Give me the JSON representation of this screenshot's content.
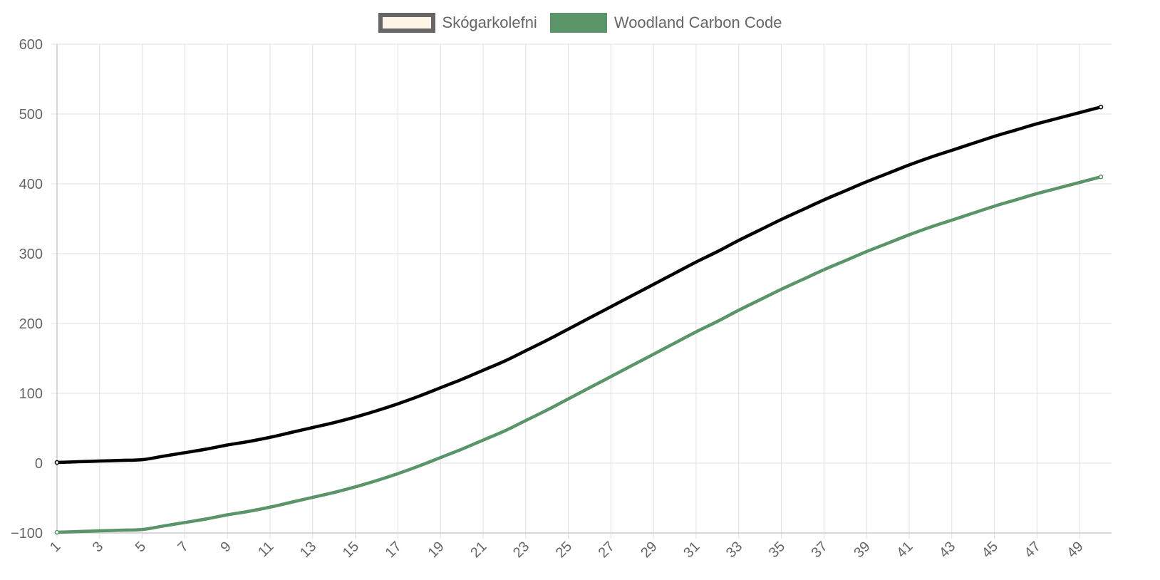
{
  "chart_data": {
    "type": "line",
    "x": [
      1,
      2,
      3,
      4,
      5,
      6,
      7,
      8,
      9,
      10,
      11,
      12,
      13,
      14,
      15,
      16,
      17,
      18,
      19,
      20,
      21,
      22,
      23,
      24,
      25,
      26,
      27,
      28,
      29,
      30,
      31,
      32,
      33,
      34,
      35,
      36,
      37,
      38,
      39,
      40,
      41,
      42,
      43,
      44,
      45,
      46,
      47,
      48,
      49,
      50
    ],
    "x_tick_labels": [
      "1",
      "3",
      "5",
      "7",
      "9",
      "11",
      "13",
      "15",
      "17",
      "19",
      "21",
      "23",
      "25",
      "27",
      "29",
      "31",
      "33",
      "35",
      "37",
      "39",
      "41",
      "43",
      "45",
      "47",
      "49"
    ],
    "ylim": [
      -100,
      600
    ],
    "y_tick_labels": [
      "600",
      "500",
      "400",
      "300",
      "200",
      "100",
      "0",
      "−100"
    ],
    "y_ticks": [
      600,
      500,
      400,
      300,
      200,
      100,
      0,
      -100
    ],
    "grid": true,
    "legend_position": "top-center",
    "series": [
      {
        "name": "Skógarkolefni",
        "color": "#000000",
        "legend_fill": "#fdf5e6",
        "legend_border": "#666666",
        "values": [
          1,
          2,
          3,
          4,
          5,
          10,
          15,
          20,
          26,
          31,
          37,
          44,
          51,
          58,
          66,
          75,
          85,
          96,
          108,
          120,
          133,
          146,
          161,
          176,
          192,
          208,
          224,
          240,
          256,
          272,
          288,
          303,
          319,
          334,
          349,
          363,
          377,
          390,
          403,
          415,
          427,
          438,
          448,
          458,
          468,
          477,
          486,
          494,
          502,
          510
        ]
      },
      {
        "name": "Woodland Carbon Code",
        "color": "#5a9469",
        "legend_fill": "#5a9469",
        "legend_border": "#5a9469",
        "values": [
          -99,
          -98,
          -97,
          -96,
          -95,
          -90,
          -85,
          -80,
          -74,
          -69,
          -63,
          -56,
          -49,
          -42,
          -34,
          -25,
          -15,
          -4,
          8,
          20,
          33,
          46,
          61,
          76,
          92,
          108,
          124,
          140,
          156,
          172,
          188,
          203,
          219,
          234,
          249,
          263,
          277,
          290,
          303,
          315,
          327,
          338,
          348,
          358,
          368,
          377,
          386,
          394,
          402,
          410
        ]
      }
    ]
  }
}
